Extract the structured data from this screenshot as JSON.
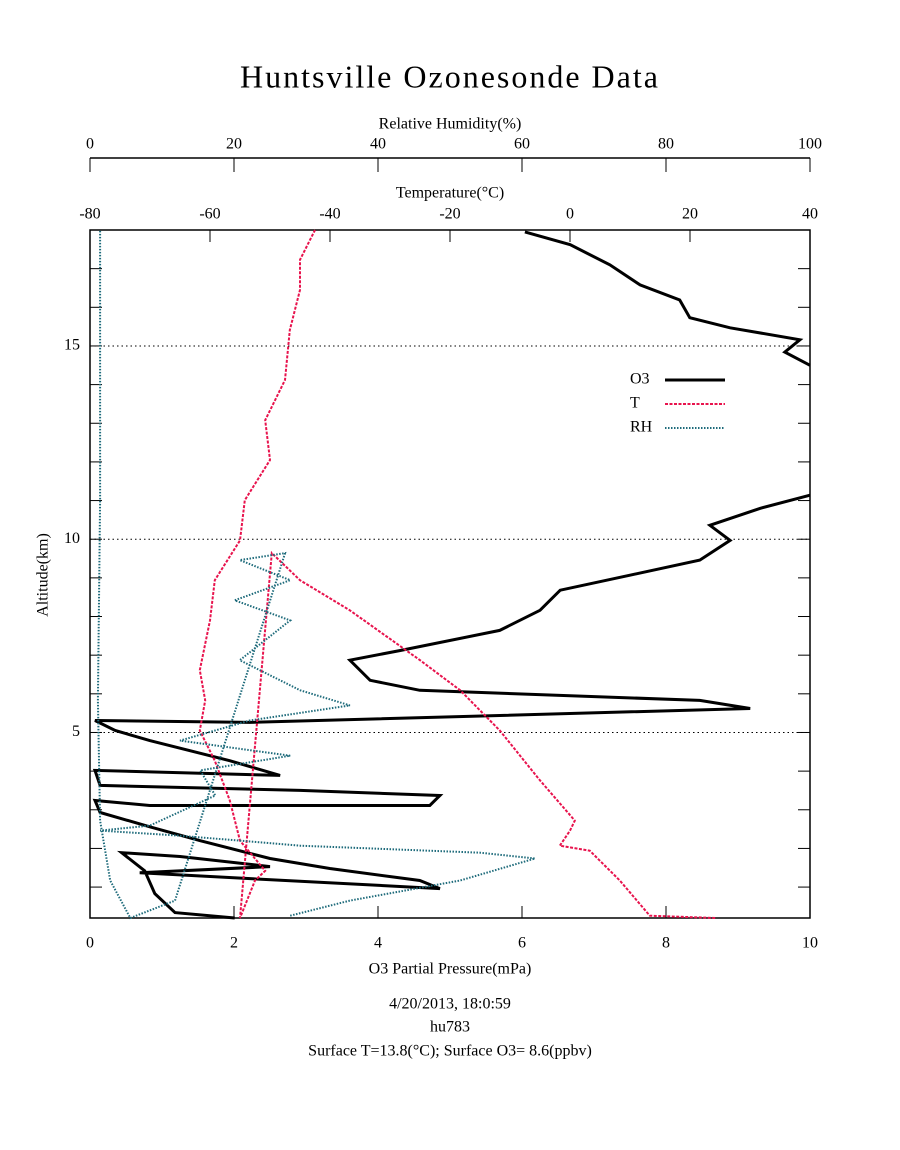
{
  "chart_data": {
    "type": "profile",
    "title": "Huntsville Ozonesonde Data",
    "xlabel": "O3 Partial Pressure(mPa)",
    "x2label": "Temperature(°C)",
    "x3label": "Relative Humidity(%)",
    "ylabel": "Altitude(km)",
    "xlim": [
      0,
      10
    ],
    "xticks": [
      0,
      2,
      4,
      6,
      8,
      10
    ],
    "x2lim": [
      -80,
      40
    ],
    "x2ticks": [
      -80,
      -60,
      -40,
      -20,
      0,
      20,
      40
    ],
    "x3lim": [
      0,
      100
    ],
    "x3ticks": [
      0,
      20,
      40,
      60,
      80,
      100
    ],
    "ylim": [
      0.2,
      18
    ],
    "yticks": [
      5,
      10,
      15
    ],
    "yminorticks": [
      1,
      2,
      3,
      4,
      5,
      6,
      7,
      8,
      9,
      10,
      11,
      12,
      13,
      14,
      15,
      16,
      17,
      18
    ],
    "grid": true,
    "legend": "upper right",
    "footer": [
      "4/20/2013, 18:0:59",
      "hu783",
      "Surface T=13.8(°C); Surface O3= 8.6(ppbv)"
    ],
    "series": [
      {
        "name": "O3",
        "color": "#000000",
        "axis": "x",
        "style": "solid",
        "values": [
          2.01,
          1.18,
          0.9,
          0.76,
          0.44,
          1.25,
          2.5,
          0.69,
          4.86,
          4.58,
          3.33,
          2.5,
          1.53,
          0.83,
          0.14,
          0.07,
          0.83,
          4.72,
          4.86,
          2.92,
          0.14,
          0.07,
          2.64,
          1.94,
          0.83,
          0.35,
          0.07,
          2.22,
          9.17,
          8.47,
          4.58,
          3.89,
          3.61,
          4.31,
          5.69,
          6.25,
          6.53,
          7.5,
          8.47,
          8.89,
          8.61,
          9.31,
          10,
          null,
          10,
          9.65,
          9.86,
          8.89,
          8.33,
          8.19,
          7.64,
          7.22,
          6.67,
          6.04
        ],
        "altitude": [
          0.2,
          0.34,
          0.83,
          1.42,
          1.89,
          1.79,
          1.53,
          1.37,
          0.96,
          1.17,
          1.48,
          1.74,
          2.2,
          2.56,
          2.93,
          3.24,
          3.11,
          3.11,
          3.37,
          3.5,
          3.63,
          4.02,
          3.89,
          4.27,
          4.79,
          5.05,
          5.31,
          5.26,
          5.62,
          5.83,
          6.09,
          6.35,
          6.87,
          7.12,
          7.64,
          8.16,
          8.68,
          9.07,
          9.46,
          9.97,
          10.36,
          10.8,
          11.14,
          null,
          14.5,
          14.84,
          15.16,
          15.47,
          15.73,
          16.19,
          16.58,
          17.1,
          17.62,
          17.95
        ]
      },
      {
        "name": "T",
        "color": "#e8134d",
        "axis": "x2",
        "style": "dash",
        "values": [
          24.2,
          13.3,
          8.3,
          3.3,
          -1.7,
          0,
          0.8,
          -5,
          -11.7,
          -18.3,
          -25,
          -36.7,
          -45,
          -49.7,
          -55,
          -52.5,
          -50.8,
          -55,
          -56.7,
          -59.2,
          -61.7,
          -60.8,
          -61.7,
          -60,
          -59.2,
          -55,
          -54.2,
          -50,
          -50.8,
          -47.5,
          -46.7,
          -45,
          -45,
          -42.5
        ],
        "altitude": [
          0.2,
          0.26,
          1.17,
          1.94,
          2.07,
          2.46,
          2.72,
          3.76,
          5.05,
          6.09,
          6.87,
          8.16,
          8.94,
          9.64,
          0.2,
          1.17,
          1.42,
          2.2,
          3.24,
          4.27,
          5.05,
          5.83,
          6.61,
          7.9,
          8.94,
          9.97,
          11.01,
          12.05,
          13.08,
          14.12,
          15.41,
          16.45,
          17.23,
          18
        ]
      },
      {
        "name": "RH",
        "color": "#1e6b7b",
        "axis": "x3",
        "style": "dot",
        "values": [
          27.8,
          36.1,
          51.4,
          61.8,
          54.2,
          29.2,
          12.5,
          1.4,
          8.3,
          17.4,
          15.3,
          27.8,
          12.5,
          22.2,
          36.1,
          29.2,
          20.8,
          27.8,
          20.1,
          27.8,
          20.8,
          27.1,
          11.8,
          5.6,
          2.8,
          1.4,
          1.1,
          1.4,
          1.4,
          1.4
        ],
        "altitude": [
          0.26,
          0.65,
          1.17,
          1.74,
          1.89,
          2.07,
          2.33,
          2.46,
          2.59,
          3.37,
          4.02,
          4.4,
          4.79,
          5.31,
          5.7,
          6.09,
          6.87,
          7.9,
          8.42,
          8.94,
          9.46,
          9.64,
          0.65,
          0.2,
          1.17,
          2.72,
          5.83,
          11.01,
          16.19,
          18
        ]
      }
    ]
  }
}
